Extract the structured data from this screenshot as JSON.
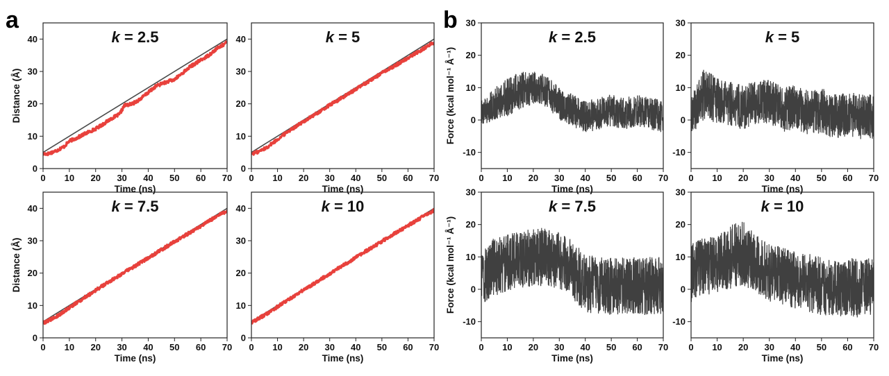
{
  "panel_letters": {
    "a": "a",
    "b": "b"
  },
  "colors": {
    "distance_series": "#e8413c",
    "reference_line": "#4a4a4a",
    "force_series": "#404040"
  },
  "chart_data": [
    {
      "id": "a1",
      "type": "line",
      "group": "a",
      "title_prefix": "k",
      "title_suffix": " = 2.5",
      "xlabel": "Time (ns)",
      "ylabel": "Distance (Å)",
      "xlim": [
        0,
        70
      ],
      "ylim": [
        0,
        45
      ],
      "xticks": [
        0,
        10,
        20,
        30,
        40,
        50,
        60,
        70
      ],
      "yticks": [
        0,
        10,
        20,
        30,
        40
      ],
      "series": [
        {
          "role": "reference",
          "x": [
            0,
            70
          ],
          "y": [
            5,
            40
          ]
        },
        {
          "role": "distance",
          "x": [
            0,
            2,
            5,
            8,
            10,
            13,
            16,
            20,
            23,
            26,
            29,
            31,
            34,
            37,
            40,
            43,
            46,
            50,
            53,
            56,
            60,
            63,
            66,
            70
          ],
          "y": [
            4.5,
            4.6,
            5.5,
            6.8,
            8.5,
            9.5,
            10.8,
            12.3,
            13.8,
            15.5,
            16.7,
            19.5,
            20.0,
            21.5,
            23.5,
            25.5,
            26.5,
            27.5,
            29.5,
            31.5,
            33.5,
            35.0,
            37.0,
            39.0
          ]
        }
      ]
    },
    {
      "id": "a2",
      "type": "line",
      "group": "a",
      "title_prefix": "k",
      "title_suffix": " = 5",
      "xlabel": "Time (ns)",
      "ylabel": "",
      "xlim": [
        0,
        70
      ],
      "ylim": [
        0,
        45
      ],
      "xticks": [
        0,
        10,
        20,
        30,
        40,
        50,
        60,
        70
      ],
      "yticks": [
        0,
        10,
        20,
        30,
        40
      ],
      "series": [
        {
          "role": "reference",
          "x": [
            0,
            70
          ],
          "y": [
            5,
            40
          ]
        },
        {
          "role": "distance",
          "x": [
            0,
            3,
            6,
            10,
            14,
            18,
            22,
            26,
            30,
            35,
            40,
            45,
            50,
            55,
            60,
            65,
            70
          ],
          "y": [
            4.5,
            5.3,
            6.6,
            9.0,
            11.5,
            13.5,
            15.5,
            17.5,
            19.6,
            22.0,
            24.5,
            27.0,
            29.5,
            31.8,
            34.2,
            36.6,
            39.0
          ]
        }
      ]
    },
    {
      "id": "a3",
      "type": "line",
      "group": "a",
      "title_prefix": "k",
      "title_suffix": " = 7.5",
      "xlabel": "Time (ns)",
      "ylabel": "Distance (Å)",
      "xlim": [
        0,
        70
      ],
      "ylim": [
        0,
        45
      ],
      "xticks": [
        0,
        10,
        20,
        30,
        40,
        50,
        60,
        70
      ],
      "yticks": [
        0,
        10,
        20,
        30,
        40
      ],
      "series": [
        {
          "role": "reference",
          "x": [
            0,
            70
          ],
          "y": [
            5,
            40
          ]
        },
        {
          "role": "distance",
          "x": [
            0,
            5,
            10,
            15,
            20,
            25,
            30,
            35,
            40,
            45,
            50,
            55,
            60,
            65,
            70
          ],
          "y": [
            4.6,
            6.5,
            9.3,
            12.0,
            14.7,
            17.3,
            19.8,
            22.2,
            24.7,
            27.2,
            29.7,
            32.1,
            34.5,
            37.0,
            39.3
          ]
        }
      ]
    },
    {
      "id": "a4",
      "type": "line",
      "group": "a",
      "title_prefix": "k",
      "title_suffix": " = 10",
      "xlabel": "Time (ns)",
      "ylabel": "",
      "xlim": [
        0,
        70
      ],
      "ylim": [
        0,
        45
      ],
      "xticks": [
        0,
        10,
        20,
        30,
        40,
        50,
        60,
        70
      ],
      "yticks": [
        0,
        10,
        20,
        30,
        40
      ],
      "series": [
        {
          "role": "reference",
          "x": [
            0,
            70
          ],
          "y": [
            5,
            40
          ]
        },
        {
          "role": "distance",
          "x": [
            0,
            5,
            10,
            15,
            20,
            25,
            30,
            35,
            40,
            45,
            50,
            55,
            60,
            65,
            70
          ],
          "y": [
            4.7,
            7.0,
            9.6,
            12.2,
            14.8,
            17.3,
            19.8,
            22.3,
            24.8,
            27.3,
            29.8,
            32.3,
            34.7,
            37.1,
            39.4
          ]
        }
      ]
    },
    {
      "id": "b1",
      "type": "line",
      "group": "b",
      "title_prefix": "k",
      "title_suffix": " = 2.5",
      "xlabel": "Time (ns)",
      "ylabel": "Force (kcal mol⁻¹ Å⁻¹)",
      "xlim": [
        0,
        70
      ],
      "ylim": [
        -15,
        30
      ],
      "xticks": [
        0,
        10,
        20,
        30,
        40,
        50,
        60,
        70
      ],
      "yticks": [
        -10,
        0,
        10,
        20,
        30
      ],
      "series": [
        {
          "role": "force",
          "x": [
            0,
            5,
            10,
            15,
            20,
            25,
            30,
            35,
            40,
            45,
            50,
            55,
            60,
            65,
            70
          ],
          "y": [
            2,
            5,
            7,
            9,
            10,
            9,
            5,
            3,
            1,
            2,
            3,
            2,
            3,
            2,
            1
          ],
          "band": [
            4,
            5,
            6,
            6,
            5,
            5,
            5,
            5,
            5,
            5,
            5,
            5,
            5,
            5,
            5
          ]
        }
      ]
    },
    {
      "id": "b2",
      "type": "line",
      "group": "b",
      "title_prefix": "k",
      "title_suffix": " = 5",
      "xlabel": "Time (ns)",
      "ylabel": "",
      "xlim": [
        0,
        70
      ],
      "ylim": [
        -15,
        30
      ],
      "xticks": [
        0,
        10,
        20,
        30,
        40,
        50,
        60,
        70
      ],
      "yticks": [
        -10,
        0,
        10,
        20,
        30
      ],
      "series": [
        {
          "role": "force",
          "x": [
            0,
            5,
            10,
            15,
            20,
            25,
            30,
            35,
            40,
            45,
            50,
            55,
            60,
            65,
            70
          ],
          "y": [
            1,
            8,
            6,
            5,
            4,
            5,
            6,
            3,
            4,
            2,
            3,
            1,
            2,
            1,
            1
          ],
          "band": [
            6,
            8,
            7,
            7,
            7,
            7,
            7,
            7,
            7,
            7,
            7,
            7,
            7,
            7,
            7
          ]
        }
      ]
    },
    {
      "id": "b3",
      "type": "line",
      "group": "b",
      "title_prefix": "k",
      "title_suffix": " = 7.5",
      "xlabel": "Time (ns)",
      "ylabel": "Force (kcal mol⁻¹ Å⁻¹)",
      "xlim": [
        0,
        70
      ],
      "ylim": [
        -15,
        30
      ],
      "xticks": [
        0,
        10,
        20,
        30,
        40,
        50,
        60,
        70
      ],
      "yticks": [
        -10,
        0,
        10,
        20,
        30
      ],
      "series": [
        {
          "role": "force",
          "x": [
            0,
            5,
            10,
            15,
            20,
            25,
            30,
            35,
            40,
            45,
            50,
            55,
            60,
            65,
            70
          ],
          "y": [
            3,
            7,
            8,
            9,
            10,
            10,
            9,
            6,
            2,
            1,
            1,
            1,
            1,
            1,
            1
          ],
          "band": [
            8,
            9,
            9,
            9,
            9,
            9,
            9,
            9,
            9,
            9,
            9,
            9,
            9,
            9,
            9
          ]
        }
      ]
    },
    {
      "id": "b4",
      "type": "line",
      "group": "b",
      "title_prefix": "k",
      "title_suffix": " = 10",
      "xlabel": "Time (ns)",
      "ylabel": "",
      "xlim": [
        0,
        70
      ],
      "ylim": [
        -15,
        30
      ],
      "xticks": [
        0,
        10,
        20,
        30,
        40,
        50,
        60,
        70
      ],
      "yticks": [
        -10,
        0,
        10,
        20,
        30
      ],
      "series": [
        {
          "role": "force",
          "x": [
            0,
            5,
            10,
            15,
            20,
            25,
            30,
            35,
            40,
            45,
            50,
            55,
            60,
            65,
            70
          ],
          "y": [
            5,
            7,
            8,
            10,
            11,
            8,
            5,
            4,
            3,
            2,
            1,
            0,
            1,
            0,
            1
          ],
          "band": [
            9,
            9,
            9,
            10,
            10,
            9,
            9,
            9,
            9,
            9,
            9,
            9,
            9,
            9,
            9
          ]
        }
      ]
    }
  ]
}
